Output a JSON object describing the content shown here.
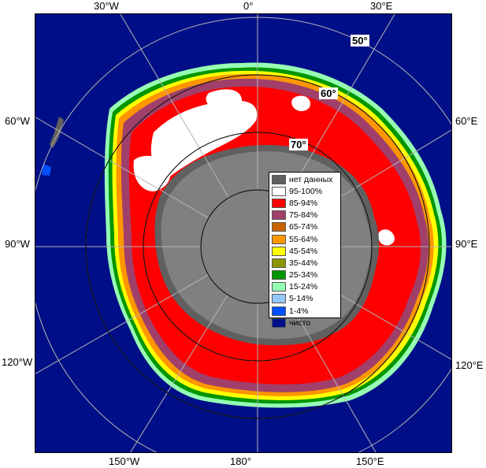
{
  "edge_labels": {
    "top": [
      "30°W",
      "0°",
      "30°E"
    ],
    "left": [
      "60°W",
      "90°W",
      "120°W"
    ],
    "right": [
      "60°E",
      "90°E",
      "120°E"
    ],
    "bottom": [
      "150°W",
      "180°",
      "150°E"
    ]
  },
  "latitude_labels": [
    "50°",
    "60°",
    "70°"
  ],
  "legend": {
    "items": [
      {
        "label": "нет данных",
        "color": "#606060"
      },
      {
        "label": "95-100%",
        "color": "#ffffff"
      },
      {
        "label": "85-94%",
        "color": "#ff0000"
      },
      {
        "label": "75-84%",
        "color": "#a0406a"
      },
      {
        "label": "65-74%",
        "color": "#c86400"
      },
      {
        "label": "55-64%",
        "color": "#ff9600"
      },
      {
        "label": "45-54%",
        "color": "#ffff00"
      },
      {
        "label": "35-44%",
        "color": "#8c9600"
      },
      {
        "label": "25-34%",
        "color": "#009600"
      },
      {
        "label": "15-24%",
        "color": "#96ffb4"
      },
      {
        "label": "5-14%",
        "color": "#96c8ff"
      },
      {
        "label": "1-4%",
        "color": "#0050ff"
      },
      {
        "label": "чисто",
        "color": "#000f87"
      }
    ]
  },
  "colors": {
    "ocean": "#000f87",
    "land": "#808080",
    "no_data": "#606060",
    "grid": "#b4b4b4",
    "ice_high": "#ff0000",
    "ice_full": "#ffffff"
  }
}
